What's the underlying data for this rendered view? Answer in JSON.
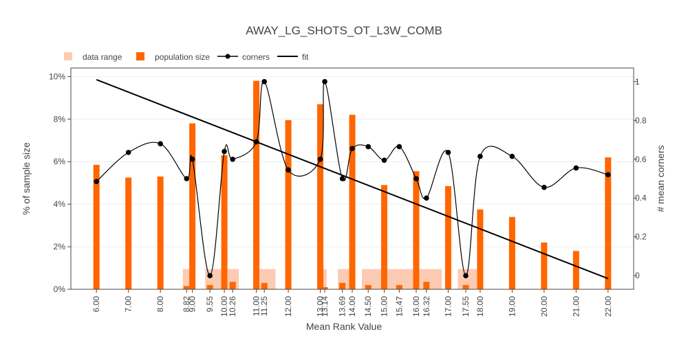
{
  "chart_data": {
    "type": "bar",
    "title": "AWAY_LG_SHOTS_OT_L3W_COMB",
    "xlabel": "Mean Rank Value",
    "ylabel": "% of sample size",
    "y2label": "# mean corners",
    "legend": {
      "placement": "top-left",
      "entries": [
        "data range",
        "population size",
        "corners",
        "fit"
      ]
    },
    "colors": {
      "data_range": "#fdcbb1",
      "population": "#ff6600",
      "corners": "#000000",
      "fit": "#000000",
      "grid": "#eeeeee"
    },
    "x_ticks": [
      6.0,
      7.0,
      8.0,
      8.82,
      9.0,
      9.55,
      10.0,
      10.26,
      11.0,
      11.25,
      12.0,
      13.0,
      13.14,
      13.69,
      14.0,
      14.5,
      15.0,
      15.47,
      16.0,
      16.32,
      17.0,
      17.55,
      18.0,
      19.0,
      20.0,
      21.0,
      22.0
    ],
    "x_tick_labels": [
      "6.00",
      "7.00",
      "8.00",
      "8.82",
      "9.00",
      "9.55",
      "10.00",
      "10.26",
      "11.00",
      "11.25",
      "12.00",
      "13.00",
      "13.14",
      "13.69",
      "14.00",
      "14.50",
      "15.00",
      "15.47",
      "16.00",
      "16.32",
      "17.00",
      "17.55",
      "18.00",
      "19.00",
      "20.00",
      "21.00",
      "22.00"
    ],
    "y_ticks": [
      0,
      2,
      4,
      6,
      8,
      10
    ],
    "y_tick_labels": [
      "0%",
      "2%",
      "4%",
      "6%",
      "8%",
      "10%"
    ],
    "y2_ticks": [
      0,
      0.2,
      0.4,
      0.6,
      0.8,
      1
    ],
    "y2_tick_labels": [
      "0",
      "0.2",
      "0.4",
      "0.6",
      "0.8",
      "1"
    ],
    "xlim": [
      5.2,
      22.8
    ],
    "ylim": [
      0,
      10.4
    ],
    "y2lim": [
      -0.07,
      1.07
    ],
    "data_range": [
      {
        "x0": 8.7,
        "x1": 8.95,
        "value": 0.95
      },
      {
        "x0": 9.4,
        "x1": 9.95,
        "value": 0.95
      },
      {
        "x0": 10.1,
        "x1": 10.45,
        "value": 0.95
      },
      {
        "x0": 11.1,
        "x1": 11.6,
        "value": 0.95
      },
      {
        "x0": 13.05,
        "x1": 13.2,
        "value": 0.95
      },
      {
        "x0": 13.55,
        "x1": 13.95,
        "value": 0.95
      },
      {
        "x0": 14.3,
        "x1": 14.95,
        "value": 0.95
      },
      {
        "x0": 15.1,
        "x1": 16.0,
        "value": 0.95
      },
      {
        "x0": 16.1,
        "x1": 16.8,
        "value": 0.95
      },
      {
        "x0": 17.3,
        "x1": 17.9,
        "value": 0.95
      }
    ],
    "population": [
      {
        "x": 6.0,
        "value": 5.85
      },
      {
        "x": 7.0,
        "value": 5.25
      },
      {
        "x": 8.0,
        "value": 5.3
      },
      {
        "x": 8.82,
        "value": 0.15
      },
      {
        "x": 9.0,
        "value": 7.8
      },
      {
        "x": 9.55,
        "value": 0.2
      },
      {
        "x": 10.0,
        "value": 6.3
      },
      {
        "x": 10.26,
        "value": 0.35
      },
      {
        "x": 11.0,
        "value": 9.8
      },
      {
        "x": 11.25,
        "value": 0.3
      },
      {
        "x": 12.0,
        "value": 7.95
      },
      {
        "x": 13.0,
        "value": 8.7
      },
      {
        "x": 13.14,
        "value": 0.1
      },
      {
        "x": 13.69,
        "value": 0.3
      },
      {
        "x": 14.0,
        "value": 8.2
      },
      {
        "x": 14.5,
        "value": 0.2
      },
      {
        "x": 15.0,
        "value": 4.9
      },
      {
        "x": 15.47,
        "value": 0.2
      },
      {
        "x": 16.0,
        "value": 5.55
      },
      {
        "x": 16.32,
        "value": 0.35
      },
      {
        "x": 17.0,
        "value": 4.85
      },
      {
        "x": 17.55,
        "value": 0.2
      },
      {
        "x": 18.0,
        "value": 3.75
      },
      {
        "x": 19.0,
        "value": 3.4
      },
      {
        "x": 20.0,
        "value": 2.2
      },
      {
        "x": 21.0,
        "value": 1.8
      },
      {
        "x": 22.0,
        "value": 6.2
      }
    ],
    "corners": [
      {
        "x": 6.0,
        "value": 0.485
      },
      {
        "x": 7.0,
        "value": 0.635
      },
      {
        "x": 8.0,
        "value": 0.68
      },
      {
        "x": 8.82,
        "value": 0.5
      },
      {
        "x": 9.0,
        "value": 0.6
      },
      {
        "x": 9.55,
        "value": 0.0
      },
      {
        "x": 10.0,
        "value": 0.64
      },
      {
        "x": 10.26,
        "value": 0.6
      },
      {
        "x": 11.0,
        "value": 0.69
      },
      {
        "x": 11.25,
        "value": 1.0
      },
      {
        "x": 12.0,
        "value": 0.545
      },
      {
        "x": 13.0,
        "value": 0.6
      },
      {
        "x": 13.14,
        "value": 1.0
      },
      {
        "x": 13.69,
        "value": 0.5
      },
      {
        "x": 14.0,
        "value": 0.655
      },
      {
        "x": 14.5,
        "value": 0.665
      },
      {
        "x": 15.0,
        "value": 0.595
      },
      {
        "x": 15.47,
        "value": 0.665
      },
      {
        "x": 16.0,
        "value": 0.5
      },
      {
        "x": 16.32,
        "value": 0.4
      },
      {
        "x": 17.0,
        "value": 0.635
      },
      {
        "x": 17.55,
        "value": 0.0
      },
      {
        "x": 18.0,
        "value": 0.615
      },
      {
        "x": 19.0,
        "value": 0.615
      },
      {
        "x": 20.0,
        "value": 0.455
      },
      {
        "x": 21.0,
        "value": 0.555
      },
      {
        "x": 22.0,
        "value": 0.52
      }
    ],
    "fit": [
      {
        "x": 6.0,
        "value": 1.01
      },
      {
        "x": 22.0,
        "value": -0.015
      }
    ]
  }
}
